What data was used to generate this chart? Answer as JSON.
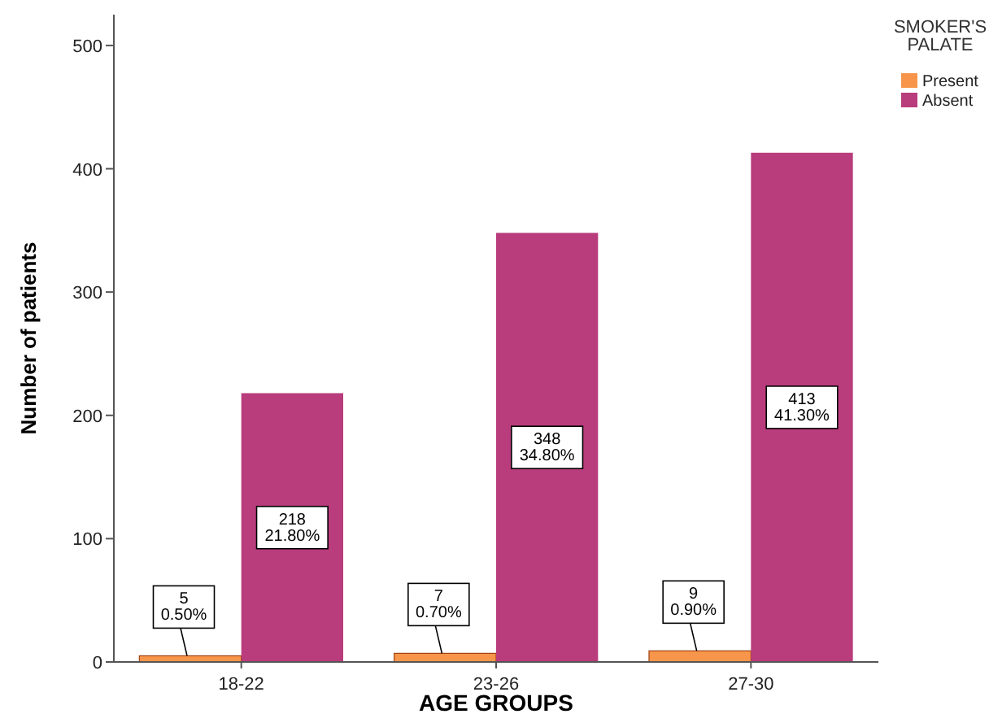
{
  "chart_data": {
    "type": "bar",
    "xlabel": "AGE GROUPS",
    "ylabel": "Number of patients",
    "legend_title": "SMOKER'S PALATE",
    "legend": "top right",
    "grid": false,
    "categories": [
      "18-22",
      "23-26",
      "27-30"
    ],
    "ylim": [
      0,
      525
    ],
    "yticks": [
      0,
      100,
      200,
      300,
      400,
      500
    ],
    "series": [
      {
        "name": "Present",
        "color": "#f7964a",
        "values": [
          5,
          7,
          9
        ],
        "value_labels": [
          "5\n0.50%",
          "7\n0.70%",
          "9\n0.90%"
        ]
      },
      {
        "name": "Absent",
        "color": "#b93c7c",
        "values": [
          218,
          348,
          413
        ],
        "value_labels": [
          "218\n21.80%",
          "348\n34.80%",
          "413\n41.30%"
        ]
      }
    ]
  }
}
